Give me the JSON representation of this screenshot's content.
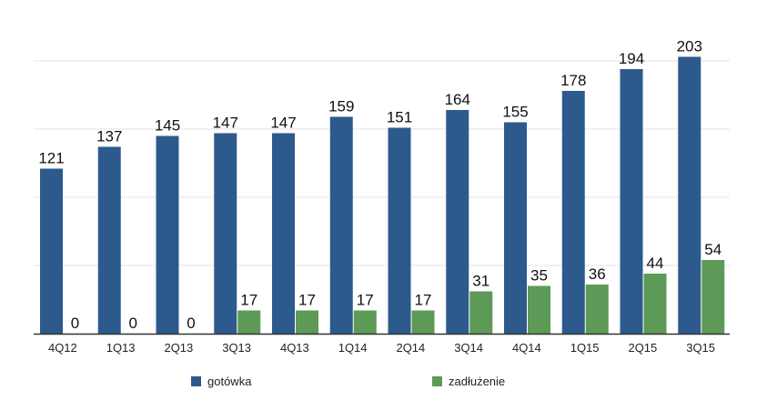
{
  "chart_data": {
    "type": "bar",
    "categories": [
      "4Q12",
      "1Q13",
      "2Q13",
      "3Q13",
      "4Q13",
      "1Q14",
      "2Q14",
      "3Q14",
      "4Q14",
      "1Q15",
      "2Q15",
      "3Q15"
    ],
    "series": [
      {
        "name": "gotówka",
        "color": "#2d5a8c",
        "values": [
          121,
          137,
          145,
          147,
          147,
          159,
          151,
          164,
          155,
          178,
          194,
          203
        ]
      },
      {
        "name": "zadłużenie",
        "color": "#5d9a57",
        "values": [
          0,
          0,
          0,
          17,
          17,
          17,
          17,
          31,
          35,
          36,
          44,
          54
        ]
      }
    ],
    "ylim": [
      0,
      250
    ],
    "grid": true,
    "legend_position": "bottom",
    "data_labels": true
  }
}
